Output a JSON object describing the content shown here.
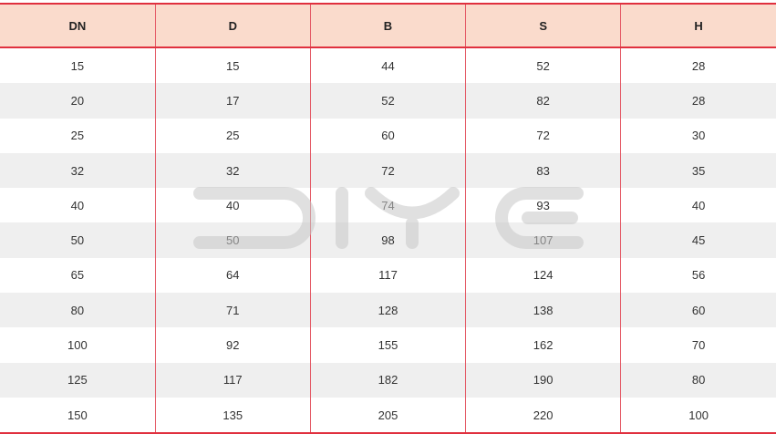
{
  "watermark": "DIYE",
  "colors": {
    "header_bg": "#fadbcc",
    "border": "#e0303e",
    "alt_row": "#efefef"
  },
  "table": {
    "headers": [
      "DN",
      "D",
      "B",
      "S",
      "H"
    ],
    "rows": [
      [
        "15",
        "15",
        "44",
        "52",
        "28"
      ],
      [
        "20",
        "17",
        "52",
        "82",
        "28"
      ],
      [
        "25",
        "25",
        "60",
        "72",
        "30"
      ],
      [
        "32",
        "32",
        "72",
        "83",
        "35"
      ],
      [
        "40",
        "40",
        "74",
        "93",
        "40"
      ],
      [
        "50",
        "50",
        "98",
        "107",
        "45"
      ],
      [
        "65",
        "64",
        "117",
        "124",
        "56"
      ],
      [
        "80",
        "71",
        "128",
        "138",
        "60"
      ],
      [
        "100",
        "92",
        "155",
        "162",
        "70"
      ],
      [
        "125",
        "117",
        "182",
        "190",
        "80"
      ],
      [
        "150",
        "135",
        "205",
        "220",
        "100"
      ]
    ]
  }
}
